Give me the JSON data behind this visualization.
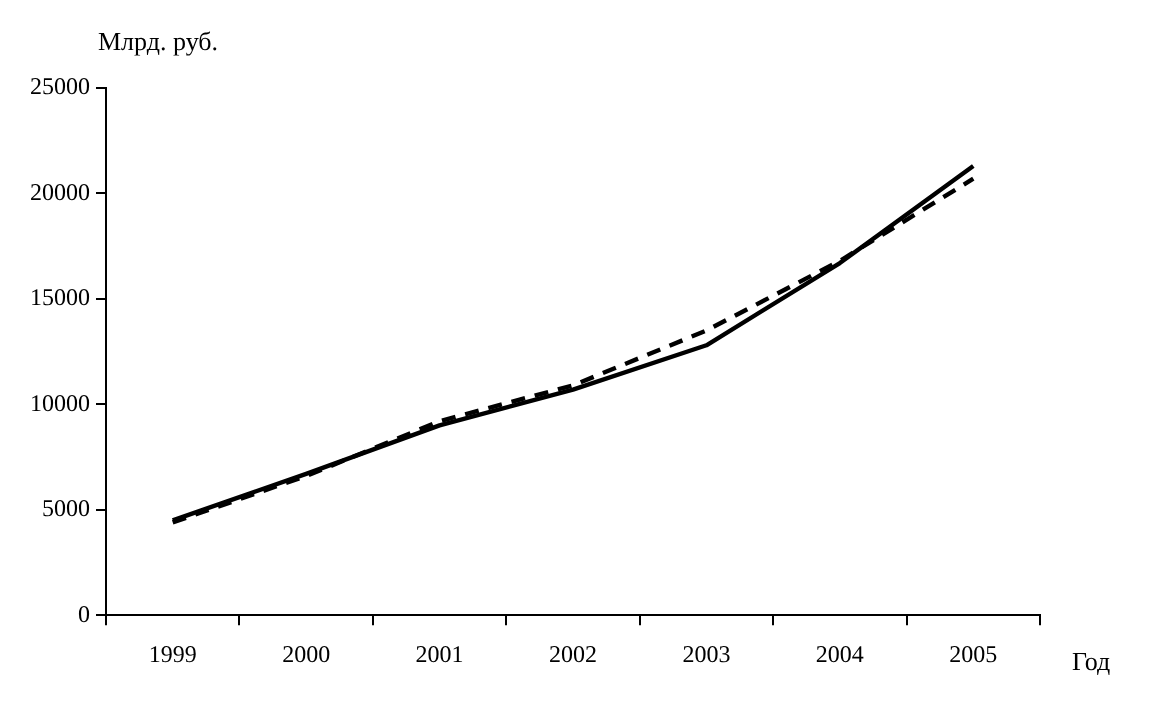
{
  "chart_data": {
    "type": "line",
    "ylabel": "Млрд. руб.",
    "xlabel": "Год",
    "categories": [
      "1999",
      "2000",
      "2001",
      "2002",
      "2003",
      "2004",
      "2005"
    ],
    "series": [
      {
        "color": "#000000",
        "line_style": "solid",
        "values": [
          4500,
          6700,
          9000,
          10700,
          12800,
          16700,
          21300
        ]
      },
      {
        "color": "#000000",
        "line_style": "dashed",
        "values": [
          4400,
          6600,
          9200,
          10900,
          13500,
          16800,
          20700
        ]
      }
    ],
    "ylim": [
      0,
      25000
    ],
    "yticks": [
      0,
      5000,
      10000,
      15000,
      20000,
      25000
    ],
    "grid": false,
    "legend": false,
    "marker": "none"
  }
}
